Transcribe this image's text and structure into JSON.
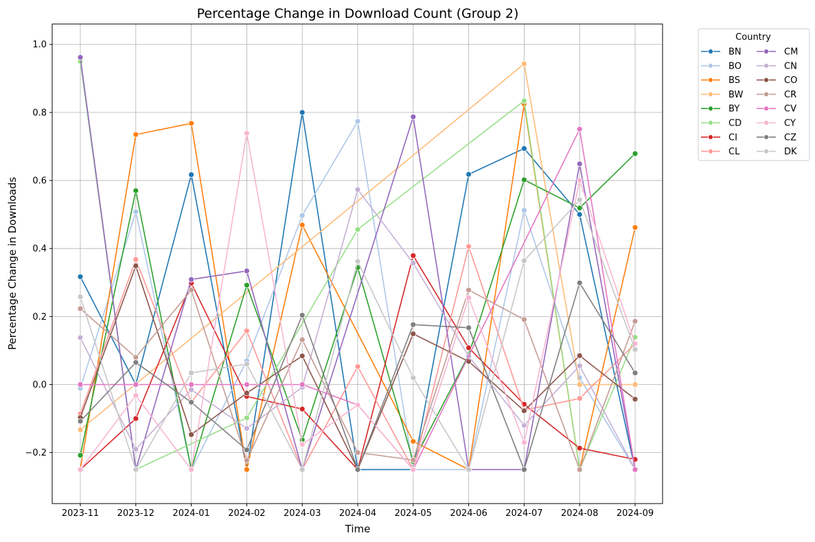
{
  "chart_data": {
    "type": "line",
    "title": "Percentage Change in Download Count (Group 2)",
    "xlabel": "Time",
    "ylabel": "Percentage Change in Downloads",
    "categories": [
      "2023-11",
      "2023-12",
      "2024-01",
      "2024-02",
      "2024-03",
      "2024-04",
      "2024-05",
      "2024-06",
      "2024-07",
      "2024-08",
      "2024-09"
    ],
    "ylim": [
      -0.35,
      1.06
    ],
    "yticks": [
      -0.2,
      0.0,
      0.2,
      0.4,
      0.6,
      0.8,
      1.0
    ],
    "ytick_labels": [
      "−0.2",
      "0.0",
      "0.2",
      "0.4",
      "0.6",
      "0.8",
      "1.0"
    ],
    "grid": true,
    "legend": {
      "title": "Country",
      "placement": "outside-top-right",
      "columns": 2
    },
    "series": [
      {
        "name": "BN",
        "color": "#1f77b4",
        "values": [
          0.317,
          0.0,
          0.617,
          -0.25,
          0.8,
          -0.25,
          -0.25,
          0.618,
          0.694,
          0.5,
          -0.25
        ]
      },
      {
        "name": "BO",
        "color": "#aec7e8",
        "values": [
          -0.011,
          0.508,
          -0.25,
          0.07,
          0.497,
          0.774,
          -0.25,
          -0.25,
          0.512,
          0.02,
          -0.25
        ]
      },
      {
        "name": "BS",
        "color": "#ff7f0e",
        "values": [
          -0.25,
          0.735,
          0.768,
          -0.25,
          0.469,
          null,
          -0.167,
          -0.25,
          0.825,
          -0.25,
          0.462
        ]
      },
      {
        "name": "BW",
        "color": "#ffbb78",
        "values": [
          -0.133,
          null,
          null,
          null,
          null,
          null,
          null,
          null,
          0.943,
          0.0,
          0.0
        ]
      },
      {
        "name": "BY",
        "color": "#2ca02c",
        "values": [
          -0.208,
          0.57,
          -0.25,
          0.292,
          -0.163,
          0.344,
          -0.227,
          0.087,
          0.602,
          0.519,
          0.679
        ]
      },
      {
        "name": "CD",
        "color": "#98df8a",
        "values": [
          0.95,
          -0.25,
          null,
          -0.098,
          null,
          0.456,
          null,
          null,
          0.834,
          -0.25,
          0.139
        ]
      },
      {
        "name": "CI",
        "color": "#d62728",
        "values": [
          -0.25,
          -0.1,
          0.298,
          -0.035,
          -0.072,
          -0.25,
          0.379,
          0.108,
          -0.058,
          -0.187,
          -0.22
        ]
      },
      {
        "name": "CL",
        "color": "#ff9896",
        "values": [
          -0.086,
          0.368,
          -0.052,
          0.158,
          -0.25,
          0.053,
          -0.25,
          0.406,
          -0.075,
          -0.041,
          0.12
        ]
      },
      {
        "name": "CM",
        "color": "#9467bd",
        "values": [
          0.962,
          -0.25,
          0.309,
          0.334,
          -0.25,
          null,
          0.787,
          -0.25,
          -0.25,
          0.649,
          -0.25
        ]
      },
      {
        "name": "CN",
        "color": "#c5b0d5",
        "values": [
          0.138,
          -0.19,
          -0.015,
          -0.129,
          -0.008,
          0.573,
          0.357,
          0.083,
          -0.12,
          0.055,
          -0.25
        ]
      },
      {
        "name": "CO",
        "color": "#8c564b",
        "values": [
          -0.097,
          0.349,
          -0.147,
          -0.025,
          0.084,
          -0.25,
          0.149,
          0.068,
          -0.077,
          0.085,
          -0.043
        ]
      },
      {
        "name": "CR",
        "color": "#c49c94",
        "values": [
          0.223,
          0.08,
          0.278,
          -0.223,
          0.132,
          -0.2,
          -0.222,
          0.278,
          0.191,
          -0.25,
          0.186
        ]
      },
      {
        "name": "CV",
        "color": "#e377c2",
        "values": [
          0.0,
          0.0,
          0.0,
          0.0,
          0.0,
          -0.06,
          -0.25,
          null,
          null,
          0.751,
          -0.25
        ]
      },
      {
        "name": "CY",
        "color": "#f7b6d2",
        "values": [
          -0.25,
          -0.032,
          -0.25,
          0.739,
          -0.176,
          -0.06,
          -0.25,
          0.255,
          -0.17,
          0.6,
          0.12
        ]
      },
      {
        "name": "CZ",
        "color": "#7f7f7f",
        "values": [
          -0.108,
          0.065,
          -0.052,
          -0.192,
          0.204,
          -0.25,
          0.176,
          0.167,
          -0.25,
          0.299,
          0.034
        ]
      },
      {
        "name": "DK",
        "color": "#c7c7c7",
        "values": [
          0.258,
          -0.25,
          0.034,
          0.06,
          -0.25,
          0.362,
          0.02,
          -0.25,
          0.364,
          0.543,
          0.103
        ]
      }
    ]
  }
}
